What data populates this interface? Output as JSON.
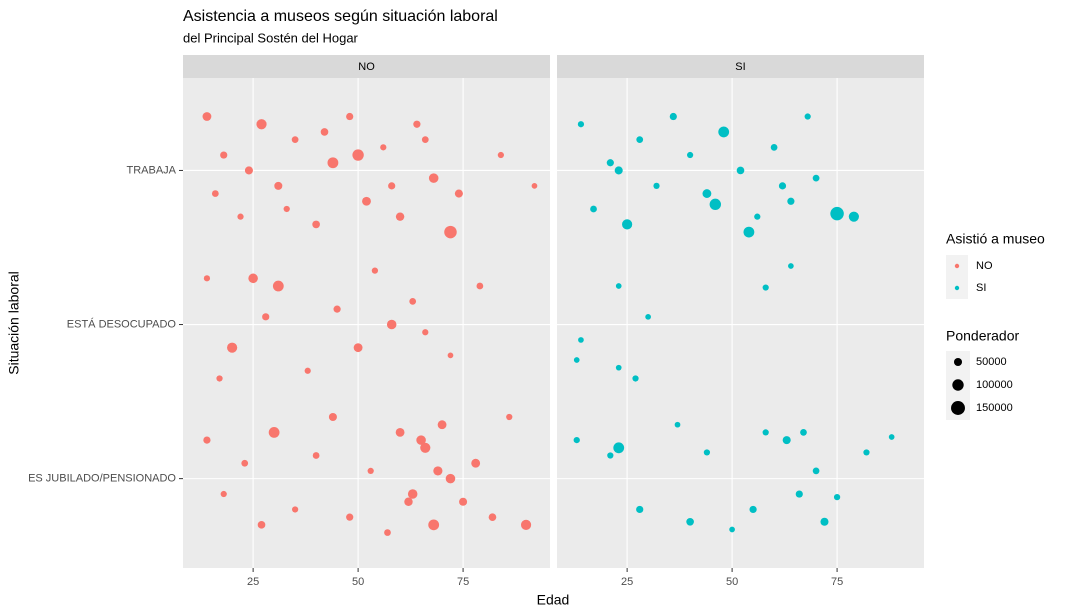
{
  "chart_data": {
    "type": "scatter",
    "title": "Asistencia a museos según situación laboral",
    "subtitle": "del Principal Sostén del Hogar",
    "xlabel": "Edad",
    "ylabel": "Situación laboral",
    "color_legend_title": "Asistió a museo",
    "size_legend_title": "Ponderador",
    "size_legend": [
      50000,
      100000,
      150000
    ],
    "xlim": [
      8.3,
      95.7
    ],
    "xticks": [
      25,
      50,
      75
    ],
    "ylim": [
      0.42,
      3.6
    ],
    "yticks": [
      {
        "value": 1,
        "label": "ES JUBILADO/PENSIONADO"
      },
      {
        "value": 2,
        "label": "ESTÁ DESOCUPADO"
      },
      {
        "value": 3,
        "label": "TRABAJA"
      }
    ],
    "grid": true,
    "facets": [
      {
        "label": "NO",
        "series": [
          {
            "name": "NO",
            "color": "#F8766D",
            "x": [
              14,
              18,
              22,
              27,
              31,
              35,
              40,
              44,
              48,
              52,
              56,
              60,
              64,
              68,
              72,
              16,
              24,
              33,
              42,
              50,
              58,
              66,
              74,
              84,
              92,
              14,
              20,
              25,
              31,
              38,
              45,
              50,
              54,
              58,
              63,
              66,
              72,
              79,
              17,
              28,
              14,
              18,
              23,
              27,
              30,
              35,
              40,
              44,
              48,
              53,
              57,
              60,
              63,
              66,
              68,
              70,
              72,
              75,
              78,
              82,
              86,
              90,
              65,
              62,
              69
            ],
            "y": [
              3.35,
              3.1,
              2.7,
              3.3,
              2.9,
              3.2,
              2.65,
              3.05,
              3.35,
              2.8,
              3.15,
              2.7,
              3.3,
              2.95,
              2.6,
              2.85,
              3.0,
              2.75,
              3.25,
              3.1,
              2.9,
              3.2,
              2.85,
              3.1,
              2.9,
              2.3,
              1.85,
              2.3,
              2.25,
              1.7,
              2.1,
              1.85,
              2.35,
              2.0,
              2.15,
              1.95,
              1.8,
              2.25,
              1.65,
              2.05,
              1.25,
              0.9,
              1.1,
              0.7,
              1.3,
              0.8,
              1.15,
              1.4,
              0.75,
              1.05,
              0.65,
              1.3,
              0.9,
              1.2,
              0.7,
              1.35,
              1.0,
              0.85,
              1.1,
              0.75,
              1.4,
              0.7,
              1.25,
              0.85,
              1.05
            ],
            "size": [
              60000,
              40000,
              30000,
              80000,
              50000,
              35000,
              45000,
              90000,
              40000,
              60000,
              30000,
              55000,
              40000,
              70000,
              120000,
              35000,
              50000,
              30000,
              45000,
              100000,
              40000,
              35000,
              50000,
              30000,
              25000,
              30000,
              80000,
              70000,
              90000,
              30000,
              40000,
              60000,
              30000,
              70000,
              35000,
              30000,
              25000,
              35000,
              30000,
              40000,
              40000,
              30000,
              35000,
              45000,
              90000,
              30000,
              35000,
              50000,
              40000,
              30000,
              35000,
              60000,
              70000,
              80000,
              90000,
              60000,
              70000,
              50000,
              60000,
              45000,
              30000,
              80000,
              70000,
              55000,
              65000
            ]
          }
        ]
      },
      {
        "label": "SI",
        "series": [
          {
            "name": "SI",
            "color": "#00BFC4",
            "x": [
              14,
              17,
              21,
              25,
              28,
              32,
              36,
              40,
              44,
              48,
              52,
              56,
              60,
              64,
              68,
              70,
              75,
              79,
              46,
              54,
              23,
              62,
              23,
              58,
              64,
              30,
              14,
              13,
              23,
              27,
              13,
              21,
              23,
              28,
              37,
              44,
              50,
              58,
              63,
              66,
              70,
              72,
              75,
              82,
              88,
              40,
              55,
              67
            ],
            "y": [
              3.3,
              2.75,
              3.05,
              2.65,
              3.2,
              2.9,
              3.35,
              3.1,
              2.85,
              3.25,
              3.0,
              2.7,
              3.15,
              2.8,
              3.35,
              2.95,
              2.72,
              2.7,
              2.78,
              2.6,
              3.0,
              2.9,
              2.25,
              2.24,
              2.38,
              2.05,
              1.9,
              1.77,
              1.72,
              1.65,
              1.25,
              1.15,
              1.2,
              0.8,
              1.35,
              1.17,
              0.67,
              1.3,
              1.25,
              0.9,
              1.05,
              0.72,
              0.88,
              1.17,
              1.27,
              0.72,
              0.8,
              1.3
            ],
            "size": [
              30000,
              35000,
              40000,
              80000,
              35000,
              30000,
              40000,
              30000,
              60000,
              90000,
              45000,
              30000,
              35000,
              40000,
              30000,
              35000,
              140000,
              80000,
              100000,
              90000,
              50000,
              40000,
              25000,
              30000,
              25000,
              25000,
              25000,
              25000,
              25000,
              30000,
              30000,
              30000,
              90000,
              40000,
              25000,
              30000,
              25000,
              30000,
              50000,
              40000,
              35000,
              50000,
              30000,
              30000,
              25000,
              45000,
              40000,
              35000
            ]
          }
        ]
      }
    ]
  }
}
